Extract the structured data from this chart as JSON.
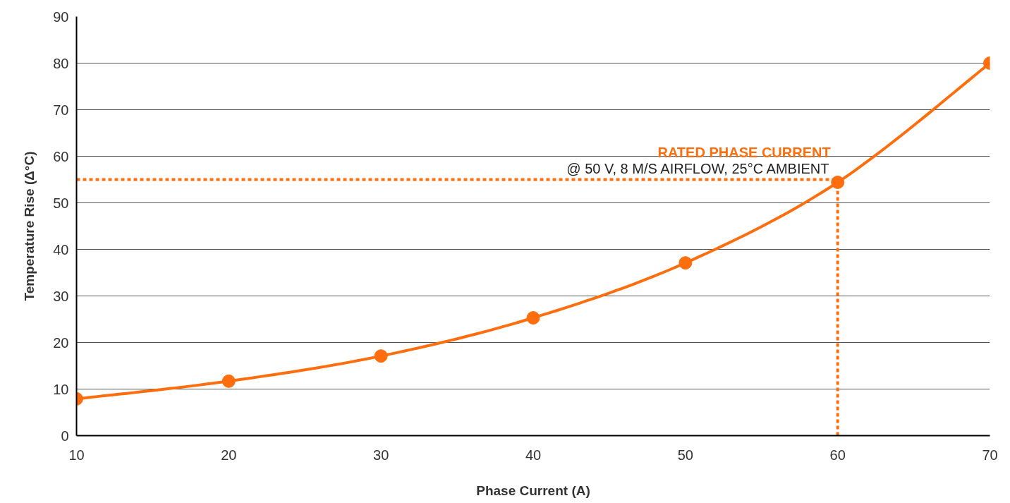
{
  "chart_data": {
    "type": "line",
    "xlabel": "Phase Current (A)",
    "ylabel": "Temperature Rise (Δ°C)",
    "x": [
      10,
      20,
      30,
      40,
      50,
      60,
      70
    ],
    "series": [
      {
        "color": "#ff6e0e",
        "values": [
          7.9,
          11.7,
          17.1,
          25.3,
          37.1,
          54.4,
          80.0
        ]
      }
    ],
    "xlim": [
      10,
      70
    ],
    "xticks": [
      10,
      20,
      30,
      40,
      50,
      60,
      70
    ],
    "ylim": [
      0,
      90
    ],
    "yticks": [
      0,
      10,
      20,
      30,
      40,
      50,
      60,
      70,
      80,
      90
    ],
    "grid": "y",
    "marker": "circle",
    "line_style": "solid",
    "ref_lines": [
      {
        "axis": "y",
        "value": 55,
        "label": "RATED PHASE CURRENT",
        "color": "#ff6e0e",
        "line_style": "dotted"
      },
      {
        "axis": "x",
        "value": 60,
        "label": null,
        "color": "#ff6e0e",
        "line_style": "dotted"
      }
    ],
    "annotations": [
      {
        "text": "@ 50 V, 8 M/S AIRFLOW, 25°C AMBIENT",
        "x": 60,
        "y": 55
      }
    ]
  }
}
